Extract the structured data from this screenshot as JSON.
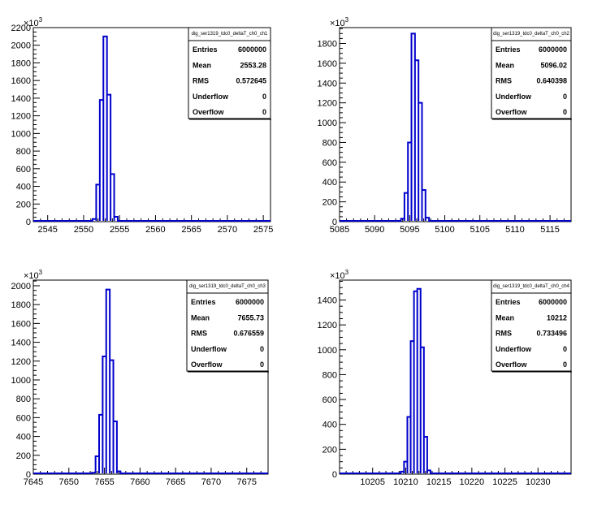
{
  "chart_data": [
    {
      "type": "bar",
      "histogram_name": "dig_ser1319_tdc0_deltaT_ch0_ch1",
      "xlim": [
        2543,
        2576
      ],
      "ylim": [
        0,
        2200
      ],
      "y_exponent_label": "×10",
      "y_exponent": "3",
      "x_ticks": [
        2545,
        2550,
        2555,
        2560,
        2565,
        2570,
        2575
      ],
      "y_ticks": [
        0,
        200,
        400,
        600,
        800,
        1000,
        1200,
        1400,
        1600,
        1800,
        2000,
        2200
      ],
      "bin_width": 0.5,
      "bins": [
        {
          "x": 2551.5,
          "y": 30
        },
        {
          "x": 2552.0,
          "y": 420
        },
        {
          "x": 2552.5,
          "y": 1380
        },
        {
          "x": 2553.0,
          "y": 2100
        },
        {
          "x": 2553.5,
          "y": 1440
        },
        {
          "x": 2554.0,
          "y": 540
        },
        {
          "x": 2554.5,
          "y": 55
        }
      ],
      "stats": {
        "rows": [
          {
            "label": "Entries",
            "value": "6000000"
          },
          {
            "label": "Mean",
            "value": "2553.28"
          },
          {
            "label": "RMS",
            "value": "0.572645"
          },
          {
            "label": "Underflow",
            "value": "0"
          },
          {
            "label": "Overflow",
            "value": "0"
          }
        ]
      }
    },
    {
      "type": "bar",
      "histogram_name": "dig_ser1319_tdc0_deltaT_ch0_ch2",
      "xlim": [
        5085,
        5118
      ],
      "ylim": [
        0,
        1960
      ],
      "y_exponent_label": "×10",
      "y_exponent": "3",
      "x_ticks": [
        5085,
        5090,
        5095,
        5100,
        5105,
        5110,
        5115
      ],
      "y_ticks": [
        0,
        200,
        400,
        600,
        800,
        1000,
        1200,
        1400,
        1600,
        1800
      ],
      "bin_width": 0.5,
      "bins": [
        {
          "x": 5094.0,
          "y": 30
        },
        {
          "x": 5094.5,
          "y": 290
        },
        {
          "x": 5095.0,
          "y": 800
        },
        {
          "x": 5095.5,
          "y": 1900
        },
        {
          "x": 5096.0,
          "y": 1630
        },
        {
          "x": 5096.5,
          "y": 1200
        },
        {
          "x": 5097.0,
          "y": 320
        },
        {
          "x": 5097.5,
          "y": 40
        }
      ],
      "stats": {
        "rows": [
          {
            "label": "Entries",
            "value": "6000000"
          },
          {
            "label": "Mean",
            "value": "5096.02"
          },
          {
            "label": "RMS",
            "value": "0.640398"
          },
          {
            "label": "Underflow",
            "value": "0"
          },
          {
            "label": "Overflow",
            "value": "0"
          }
        ]
      }
    },
    {
      "type": "bar",
      "histogram_name": "dig_ser1319_tdc0_deltaT_ch0_ch3",
      "xlim": [
        7645,
        7678
      ],
      "ylim": [
        0,
        2060
      ],
      "y_exponent_label": "×10",
      "y_exponent": "3",
      "x_ticks": [
        7645,
        7650,
        7655,
        7660,
        7665,
        7670,
        7675
      ],
      "y_ticks": [
        0,
        200,
        400,
        600,
        800,
        1000,
        1200,
        1400,
        1600,
        1800,
        2000
      ],
      "bin_width": 0.5,
      "bins": [
        {
          "x": 7653.5,
          "y": 15
        },
        {
          "x": 7654.0,
          "y": 190
        },
        {
          "x": 7654.5,
          "y": 630
        },
        {
          "x": 7655.0,
          "y": 1250
        },
        {
          "x": 7655.5,
          "y": 1960
        },
        {
          "x": 7656.0,
          "y": 1210
        },
        {
          "x": 7656.5,
          "y": 560
        },
        {
          "x": 7657.0,
          "y": 30
        }
      ],
      "stats": {
        "rows": [
          {
            "label": "Entries",
            "value": "6000000"
          },
          {
            "label": "Mean",
            "value": "7655.73"
          },
          {
            "label": "RMS",
            "value": "0.676559"
          },
          {
            "label": "Underflow",
            "value": "0"
          },
          {
            "label": "Overflow",
            "value": "0"
          }
        ]
      }
    },
    {
      "type": "bar",
      "histogram_name": "dig_ser1319_tdc0_deltaT_ch0_ch4",
      "xlim": [
        10200,
        10235
      ],
      "ylim": [
        0,
        1560
      ],
      "y_exponent_label": "×10",
      "y_exponent": "3",
      "x_ticks": [
        10205,
        10210,
        10215,
        10220,
        10225,
        10230
      ],
      "y_ticks": [
        0,
        200,
        400,
        600,
        800,
        1000,
        1200,
        1400
      ],
      "bin_width": 0.5,
      "bins": [
        {
          "x": 10209.5,
          "y": 20
        },
        {
          "x": 10210.0,
          "y": 100
        },
        {
          "x": 10210.5,
          "y": 460
        },
        {
          "x": 10211.0,
          "y": 1070
        },
        {
          "x": 10211.5,
          "y": 1470
        },
        {
          "x": 10212.0,
          "y": 1490
        },
        {
          "x": 10212.5,
          "y": 1020
        },
        {
          "x": 10213.0,
          "y": 300
        },
        {
          "x": 10213.5,
          "y": 30
        }
      ],
      "stats": {
        "rows": [
          {
            "label": "Entries",
            "value": "6000000"
          },
          {
            "label": "Mean",
            "value": "10212"
          },
          {
            "label": "RMS",
            "value": "0.733496"
          },
          {
            "label": "Underflow",
            "value": "0"
          },
          {
            "label": "Overflow",
            "value": "0"
          }
        ]
      }
    }
  ],
  "colors": {
    "histogram_line": "#0000cc",
    "axis": "#000000",
    "background": "#ffffff"
  }
}
